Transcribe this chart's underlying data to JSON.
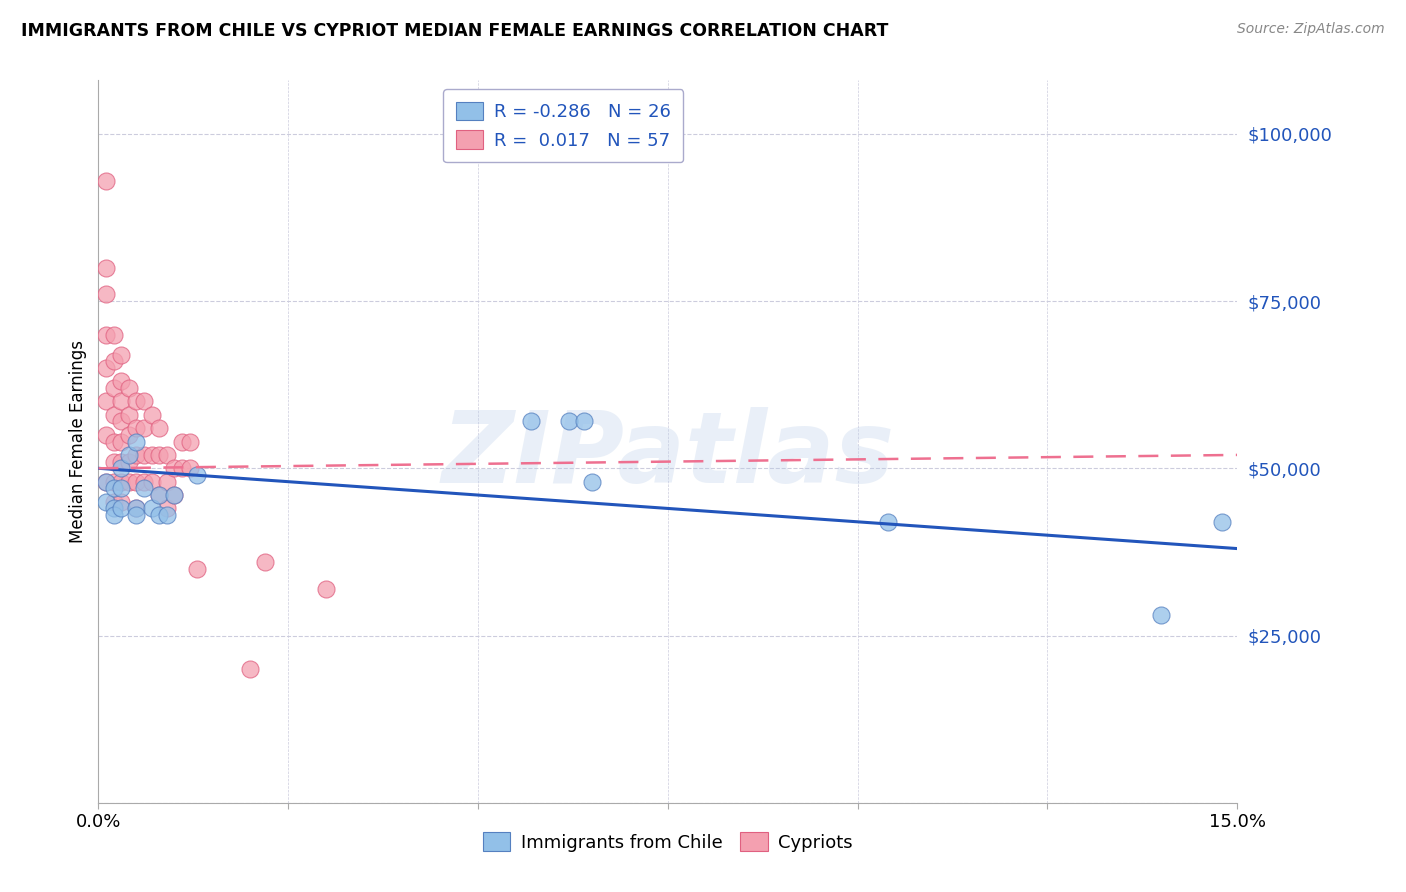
{
  "title": "IMMIGRANTS FROM CHILE VS CYPRIOT MEDIAN FEMALE EARNINGS CORRELATION CHART",
  "source": "Source: ZipAtlas.com",
  "ylabel": "Median Female Earnings",
  "yticks": [
    0,
    25000,
    50000,
    75000,
    100000
  ],
  "ytick_labels": [
    "",
    "$25,000",
    "$50,000",
    "$75,000",
    "$100,000"
  ],
  "xmin": 0.0,
  "xmax": 0.15,
  "ymin": 0,
  "ymax": 108000,
  "legend_blue_r": "-0.286",
  "legend_blue_n": "26",
  "legend_pink_r": "0.017",
  "legend_pink_n": "57",
  "blue_color": "#92C0E8",
  "pink_color": "#F4A0B0",
  "blue_edge_color": "#5580C0",
  "pink_edge_color": "#E06080",
  "blue_line_color": "#2255BB",
  "pink_line_color": "#EE7090",
  "watermark": "ZIPatlas",
  "blue_points_x": [
    0.001,
    0.001,
    0.002,
    0.002,
    0.002,
    0.003,
    0.003,
    0.003,
    0.004,
    0.005,
    0.005,
    0.005,
    0.006,
    0.007,
    0.008,
    0.008,
    0.009,
    0.01,
    0.013,
    0.057,
    0.062,
    0.064,
    0.065,
    0.104,
    0.14,
    0.148
  ],
  "blue_points_y": [
    48000,
    45000,
    47000,
    44000,
    43000,
    50000,
    47000,
    44000,
    52000,
    54000,
    44000,
    43000,
    47000,
    44000,
    46000,
    43000,
    43000,
    46000,
    49000,
    57000,
    57000,
    57000,
    48000,
    42000,
    28000,
    42000
  ],
  "pink_points_x": [
    0.001,
    0.001,
    0.001,
    0.001,
    0.001,
    0.001,
    0.001,
    0.001,
    0.002,
    0.002,
    0.002,
    0.002,
    0.002,
    0.002,
    0.002,
    0.002,
    0.003,
    0.003,
    0.003,
    0.003,
    0.003,
    0.003,
    0.003,
    0.003,
    0.004,
    0.004,
    0.004,
    0.004,
    0.004,
    0.005,
    0.005,
    0.005,
    0.005,
    0.005,
    0.006,
    0.006,
    0.006,
    0.006,
    0.007,
    0.007,
    0.007,
    0.008,
    0.008,
    0.008,
    0.009,
    0.009,
    0.009,
    0.01,
    0.01,
    0.011,
    0.011,
    0.012,
    0.012,
    0.013,
    0.02,
    0.022,
    0.03
  ],
  "pink_points_y": [
    93000,
    80000,
    76000,
    70000,
    65000,
    60000,
    55000,
    48000,
    70000,
    66000,
    62000,
    58000,
    54000,
    51000,
    48000,
    45000,
    67000,
    63000,
    60000,
    57000,
    54000,
    51000,
    48000,
    45000,
    62000,
    58000,
    55000,
    51000,
    48000,
    60000,
    56000,
    52000,
    48000,
    44000,
    60000,
    56000,
    52000,
    48000,
    58000,
    52000,
    48000,
    56000,
    52000,
    46000,
    52000,
    48000,
    44000,
    50000,
    46000,
    54000,
    50000,
    54000,
    50000,
    35000,
    20000,
    36000,
    32000
  ],
  "blue_trendline_x": [
    0.0,
    0.15
  ],
  "blue_trendline_y": [
    50000,
    38000
  ],
  "pink_trendline_x": [
    0.0,
    0.15
  ],
  "pink_trendline_y": [
    50000,
    52000
  ]
}
